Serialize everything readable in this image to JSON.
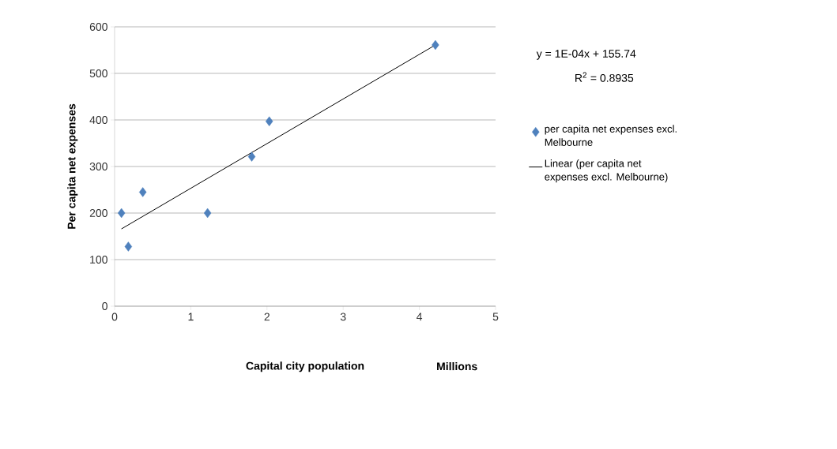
{
  "chart_data": {
    "type": "scatter",
    "xlabel": "Capital city population",
    "ylabel": "Per capita net expenses",
    "xlim": [
      0,
      5
    ],
    "ylim": [
      0,
      600
    ],
    "xticks": [
      0,
      1,
      2,
      3,
      4,
      5
    ],
    "yticks": [
      0,
      100,
      200,
      300,
      400,
      500,
      600
    ],
    "grid": "y",
    "legend": "right",
    "series": [
      {
        "name": "per capita net expenses excl. Melbourne",
        "color": "#4f81bd",
        "marker": "diamond",
        "x": [
          0.09,
          0.18,
          0.37,
          1.22,
          1.8,
          2.03,
          4.21
        ],
        "values": [
          200,
          128,
          245,
          200,
          321,
          397,
          561
        ]
      },
      {
        "name": "Linear (per capita net expenses excl. Melbourne)",
        "type": "line",
        "color": "#000000",
        "marker": "none",
        "x": [
          0.09,
          4.21
        ],
        "values": [
          166,
          561
        ]
      }
    ],
    "annotations": [
      "y = 1E-04x + 155.74",
      "R$^{2}$ = 0.8935",
      "Millions"
    ]
  }
}
